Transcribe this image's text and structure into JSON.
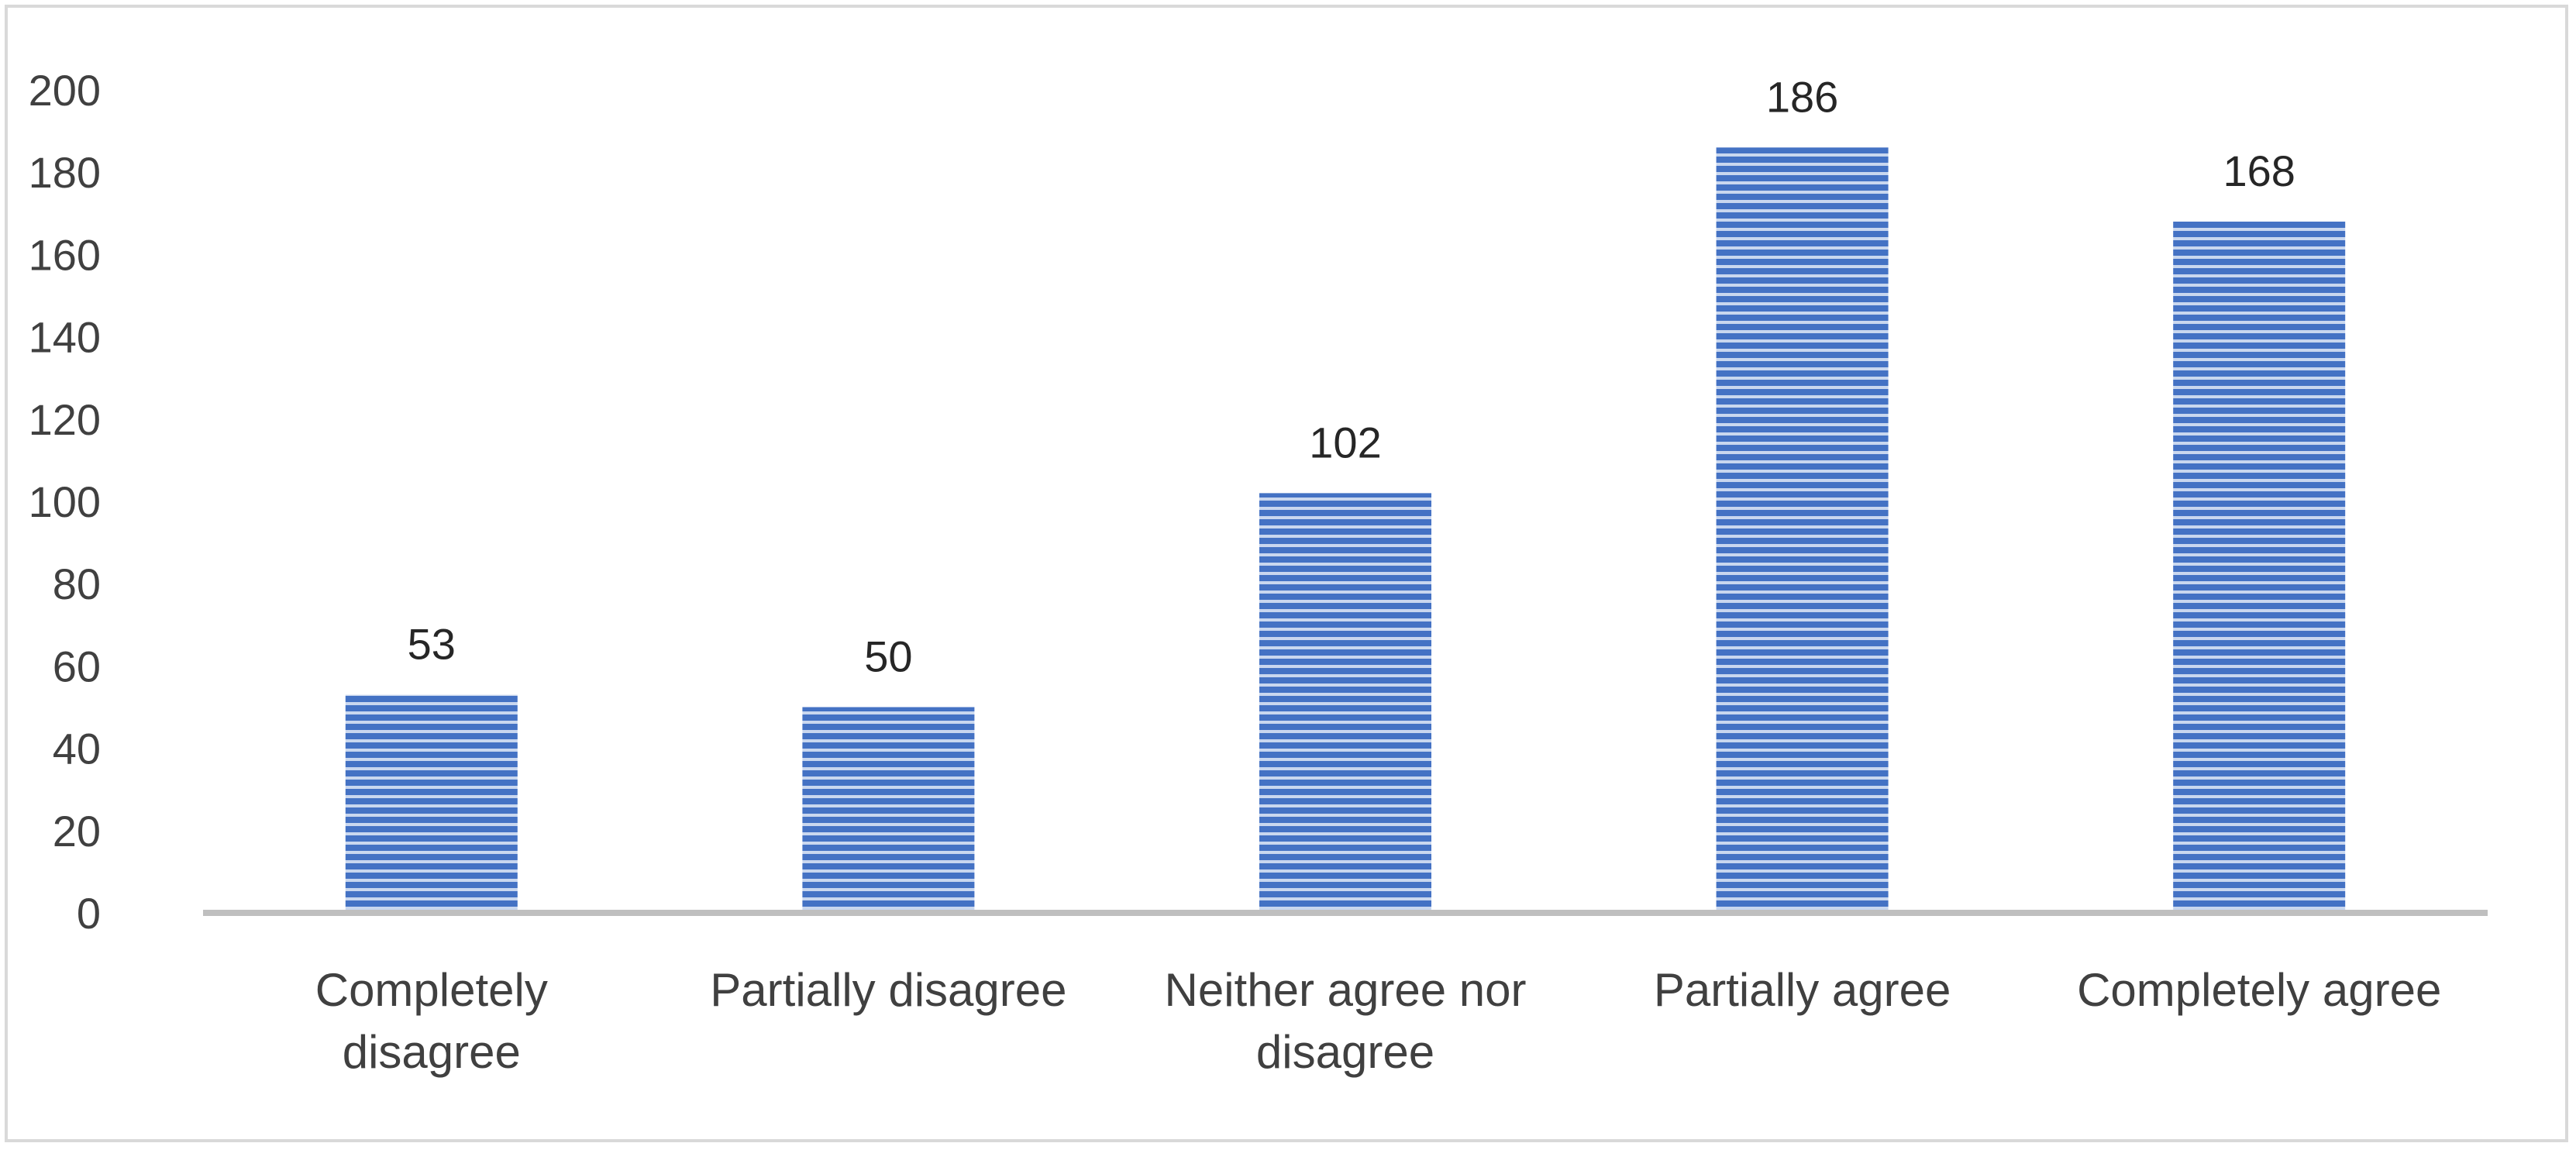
{
  "chart_data": {
    "type": "bar",
    "categories": [
      "Completely disagree",
      "Partially disagree",
      "Neither agree nor disagree",
      "Partially agree",
      "Completely agree"
    ],
    "category_lines": [
      [
        "Completely",
        "disagree"
      ],
      [
        "Partially disagree"
      ],
      [
        "Neither agree nor",
        "disagree"
      ],
      [
        "Partially agree"
      ],
      [
        "Completely agree"
      ]
    ],
    "values": [
      53,
      50,
      102,
      186,
      168
    ],
    "data_labels": [
      "53",
      "50",
      "102",
      "186",
      "168"
    ],
    "ylim": [
      0,
      200
    ],
    "yticks": [
      0,
      20,
      40,
      60,
      80,
      100,
      120,
      140,
      160,
      180,
      200
    ],
    "grid": false,
    "legend": "none",
    "colors": {
      "bar": "#4472c4",
      "bar_stripe": "#c9d7ef",
      "axis": "#bfbfbf",
      "frame": "#d9d9d9"
    }
  }
}
